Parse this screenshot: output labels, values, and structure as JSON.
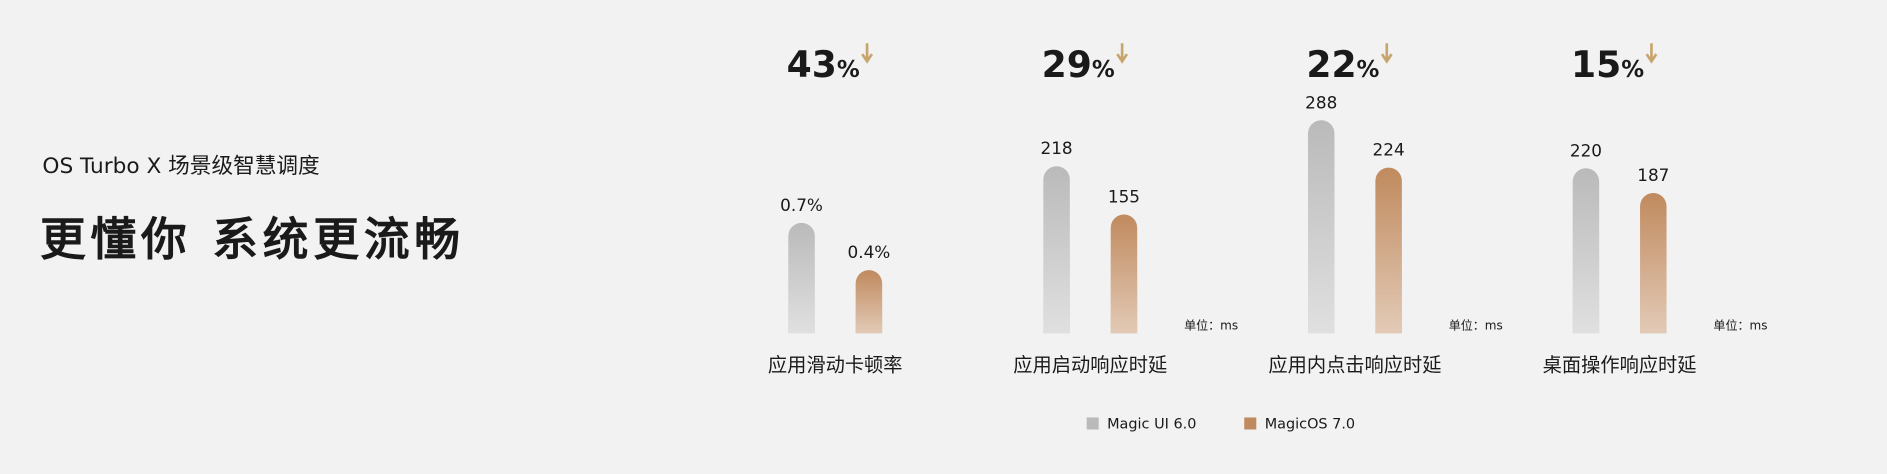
{
  "header": {
    "subtitle": "OS Turbo X 场景级智慧调度",
    "title": "更懂你 系统更流畅"
  },
  "legend": [
    {
      "name": "Magic UI 6.0",
      "color": "#b9bab9"
    },
    {
      "name": "MagicOS 7.0",
      "color": "#c08a5e"
    }
  ],
  "chart_data": [
    {
      "type": "bar",
      "category": "应用滑动卡顿率",
      "reduction": {
        "value": 43,
        "label": "43%"
      },
      "values": [
        0.7,
        0.4
      ],
      "value_labels": [
        "0.7%",
        "0.4%"
      ],
      "ylim": [
        0,
        1.35
      ]
    },
    {
      "type": "bar",
      "category": "应用启动响应时延",
      "reduction": {
        "value": 29,
        "label": "29%"
      },
      "values": [
        218,
        155
      ],
      "ylim": [
        0,
        278
      ],
      "unit": "单位：ms"
    },
    {
      "type": "bar",
      "category": "应用内点击响应时延",
      "reduction": {
        "value": 22,
        "label": "22%"
      },
      "values": [
        288,
        224
      ],
      "ylim": [
        0,
        288
      ],
      "unit": "单位：ms"
    },
    {
      "type": "bar",
      "category": "桌面操作响应时延",
      "reduction": {
        "value": 15,
        "label": "15%"
      },
      "values": [
        220,
        187
      ],
      "ylim": [
        0,
        284
      ],
      "unit": "单位：ms"
    }
  ]
}
